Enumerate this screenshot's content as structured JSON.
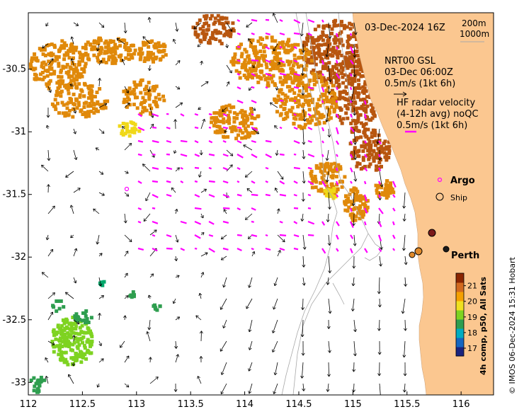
{
  "map": {
    "date_title": "03-Dec-2024 16Z",
    "isobaths": [
      "200m",
      "1000m"
    ],
    "x_ticks": [
      "112",
      "112.5",
      "113",
      "113.5",
      "114",
      "114.5",
      "115",
      "115.5",
      "116"
    ],
    "y_ticks": [
      "-30.5",
      "-31",
      "-31.5",
      "-32",
      "-32.5",
      "-33"
    ],
    "x_tick_values": [
      112,
      112.5,
      113,
      113.5,
      114,
      114.5,
      115,
      115.5,
      116
    ],
    "y_tick_values": [
      -30.5,
      -31,
      -31.5,
      -32,
      -32.5,
      -33
    ],
    "lon_range": [
      112,
      116.3
    ],
    "lat_range": [
      -33.1,
      -30.05
    ]
  },
  "legend": {
    "gsl_title": "NRT00 GSL",
    "gsl_time": "03-Dec 06:00Z",
    "gsl_scale": "0.5m/s (1kt 6h)",
    "hf_title": "HF radar velocity",
    "hf_avg": "(4-12h avg) noQC",
    "hf_scale": "0.5m/s (1kt 6h)",
    "argo_label": "Argo",
    "ship_label": "Ship",
    "city_label": "Perth"
  },
  "colorbar": {
    "ticks": [
      "21",
      "20",
      "19",
      "18",
      "17"
    ],
    "tick_values": [
      21,
      20,
      19,
      18,
      17
    ],
    "range": [
      16.5,
      21.8
    ],
    "label": "4h comp, p50, All Sats",
    "colors": [
      "#1a237e",
      "#1565c0",
      "#00acc1",
      "#2e9e4f",
      "#7ed321",
      "#f0e020",
      "#f5a000",
      "#d2691e",
      "#8b2500"
    ]
  },
  "credit": "© IMOS 06-Dec-2024 15:31 Hobart",
  "colors": {
    "land": "#fbc790",
    "hf_arrow": "#ff00ff",
    "gsl_arrow": "#000000",
    "sst_warm": "#e0890a",
    "sst_hot": "#b8560f",
    "sst_cool": "#7ed321",
    "sst_mid": "#f0d818"
  }
}
